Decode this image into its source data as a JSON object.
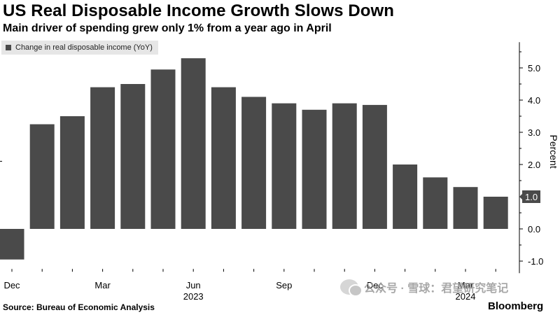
{
  "title": "US Real Disposable Income Growth Slows Down",
  "subtitle": "Main driver of spending grew only 1% from a year ago in April",
  "source": "Source: Bureau of Economic Analysis",
  "brand": "Bloomberg",
  "watermark": "公众号 · 雪球：君望研究笔记",
  "colors": {
    "bar": "#4a4a4a",
    "highlight_label_bg": "#4a4a4a",
    "legend_bg": "#e6e6e6"
  },
  "chart_data": {
    "type": "bar",
    "categories": [
      "Dec 2022",
      "Jan 2023",
      "Feb 2023",
      "Mar 2023",
      "Apr 2023",
      "May 2023",
      "Jun 2023",
      "Jul 2023",
      "Aug 2023",
      "Sep 2023",
      "Oct 2023",
      "Nov 2023",
      "Dec 2023",
      "Jan 2024",
      "Feb 2024",
      "Mar 2024",
      "Apr 2024"
    ],
    "series": [
      {
        "name": "Change in real disposable income (YoY)",
        "values": [
          -0.95,
          3.25,
          3.5,
          4.4,
          4.5,
          4.95,
          5.3,
          4.4,
          4.1,
          3.9,
          3.7,
          3.9,
          3.85,
          2.0,
          1.6,
          1.3,
          1.0
        ]
      }
    ],
    "x_tick_labels": [
      {
        "category": "Dec 2022",
        "label": "Dec"
      },
      {
        "category": "Mar 2023",
        "label": "Mar"
      },
      {
        "category": "Jun 2023",
        "label": "Jun",
        "sublabel": "2023"
      },
      {
        "category": "Sep 2023",
        "label": "Sep"
      },
      {
        "category": "Dec 2023",
        "label": "Dec"
      },
      {
        "category": "Mar 2024",
        "label": "Mar",
        "sublabel": "2024"
      }
    ],
    "y_ticks": [
      -1.0,
      0.0,
      1.0,
      2.0,
      3.0,
      4.0,
      5.0
    ],
    "y_tick_labels": [
      "-1.0",
      "0.0",
      "1.0",
      "2.0",
      "3.0",
      "4.0",
      "5.0"
    ],
    "ylim": [
      -1.2,
      5.8
    ],
    "ylabel": "Percent",
    "highlight_value_label": "1.0",
    "grid": false,
    "legend_position": "top-left"
  }
}
